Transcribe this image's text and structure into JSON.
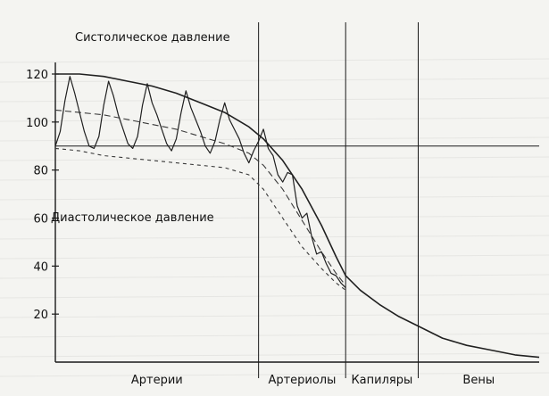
{
  "chart_data": {
    "type": "line",
    "title": "",
    "xlabel": "",
    "ylabel": "",
    "ylim": [
      0,
      120
    ],
    "xlim": [
      0,
      100
    ],
    "yticks": [
      20,
      40,
      60,
      80,
      100,
      120
    ],
    "categories": [
      "Артерии",
      "Артериолы",
      "Капиляры",
      "Вены"
    ],
    "category_bounds": [
      0,
      42,
      60,
      75,
      100
    ],
    "annotations": [
      "Систолическое давление",
      "Диастолическое давление"
    ],
    "series": [
      {
        "role": "systolic-envelope",
        "x": [
          0,
          5,
          10,
          15,
          20,
          25,
          30,
          35,
          40,
          43,
          47,
          51,
          55,
          58,
          60,
          63,
          67,
          71,
          75,
          80,
          85,
          90,
          95,
          100
        ],
        "y": [
          120,
          120,
          119,
          117,
          115,
          112,
          108,
          104,
          98,
          93,
          84,
          72,
          57,
          44,
          36,
          30,
          24,
          19,
          15,
          10,
          7,
          5,
          3,
          2
        ]
      },
      {
        "role": "diastolic-envelope",
        "x": [
          0,
          5,
          10,
          15,
          20,
          25,
          30,
          35,
          40,
          43,
          47,
          51,
          55,
          58,
          60
        ],
        "y": [
          89,
          88,
          86,
          85,
          84,
          83,
          82,
          81,
          78,
          72,
          60,
          48,
          39,
          33,
          30
        ]
      },
      {
        "role": "mean-pressure",
        "x": [
          0,
          5,
          10,
          15,
          20,
          25,
          30,
          35,
          40,
          43,
          47,
          51,
          55,
          58,
          60
        ],
        "y": [
          105,
          104,
          103,
          101,
          99,
          97,
          94,
          91,
          87,
          82,
          72,
          59,
          46,
          37,
          32
        ]
      },
      {
        "role": "pressure-pulse-wave",
        "x": [
          0,
          1,
          2,
          3,
          4,
          5,
          6,
          7,
          8,
          9,
          10,
          11,
          12,
          13,
          14,
          15,
          16,
          17,
          18,
          19,
          20,
          21,
          22,
          23,
          24,
          25,
          26,
          27,
          28,
          29,
          30,
          31,
          32,
          33,
          34,
          35,
          36,
          37,
          38,
          39,
          40,
          41,
          42,
          43,
          44,
          45,
          46,
          47,
          48,
          49,
          50,
          51,
          52,
          53,
          54,
          55,
          56,
          57,
          58,
          59,
          60
        ],
        "y": [
          90,
          96,
          109,
          119,
          112,
          104,
          96,
          90,
          89,
          94,
          107,
          117,
          111,
          103,
          97,
          91,
          89,
          94,
          107,
          116,
          108,
          103,
          97,
          91,
          88,
          93,
          104,
          113,
          106,
          101,
          96,
          90,
          87,
          92,
          101,
          108,
          101,
          97,
          93,
          87,
          83,
          88,
          92,
          97,
          89,
          86,
          78,
          75,
          79,
          78,
          65,
          60,
          62,
          52,
          45,
          46,
          41,
          37,
          36,
          33,
          31
        ]
      }
    ]
  },
  "colors": {
    "axis": "#1a1a1a",
    "line": "#202020",
    "dashed": "#3a3a3a",
    "background": "#f4f4f1",
    "bleed_text": "#c9c9c6"
  }
}
